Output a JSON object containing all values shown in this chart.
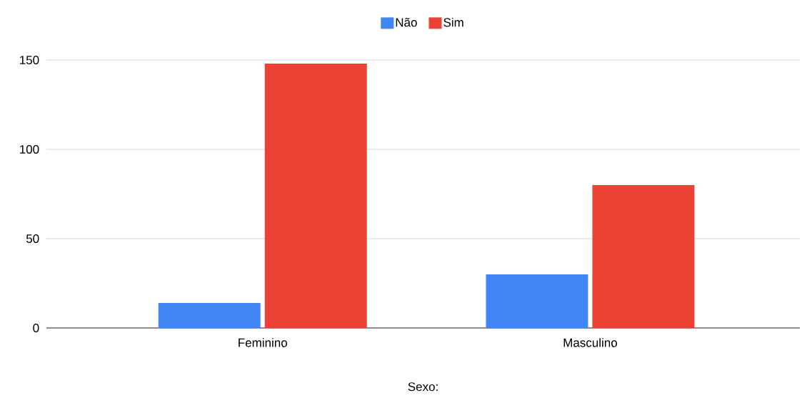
{
  "chart_data": {
    "type": "bar",
    "xlabel": "Sexo:",
    "categories": [
      "Feminino",
      "Masculino"
    ],
    "series": [
      {
        "name": "Não",
        "color": "#4285f4",
        "values": [
          14,
          30
        ]
      },
      {
        "name": "Sim",
        "color": "#ea4335",
        "values": [
          148,
          80
        ]
      }
    ],
    "ylim": [
      0,
      150
    ],
    "yticks": [
      0,
      50,
      100,
      150
    ],
    "grid": "y",
    "legend": "top"
  }
}
